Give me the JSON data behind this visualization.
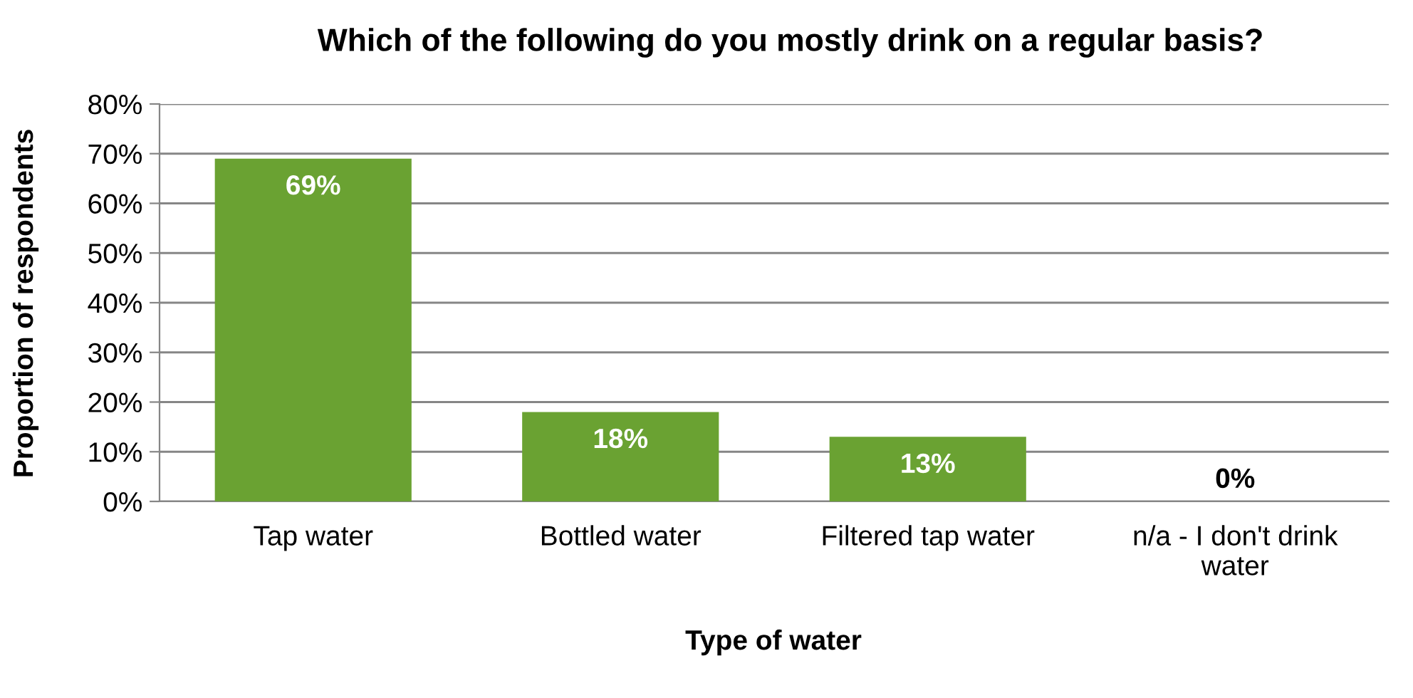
{
  "chart_data": {
    "type": "bar",
    "title": "Which of the following do you mostly drink on a regular basis?",
    "xlabel": "Type of water",
    "ylabel": "Proportion of respondents",
    "categories": [
      "Tap water",
      "Bottled water",
      "Filtered tap water",
      "n/a - I don't drink\nwater"
    ],
    "values": [
      69,
      18,
      13,
      0
    ],
    "color": "#6aa232",
    "value_labels": [
      "69%",
      "18%",
      "13%",
      "0%"
    ],
    "ylim": [
      0,
      80
    ],
    "yticks": [
      {
        "value": 0,
        "label": "0%"
      },
      {
        "value": 10,
        "label": "10%"
      },
      {
        "value": 20,
        "label": "20%"
      },
      {
        "value": 30,
        "label": "30%"
      },
      {
        "value": 40,
        "label": "40%"
      },
      {
        "value": 50,
        "label": "50%"
      },
      {
        "value": 60,
        "label": "60%"
      },
      {
        "value": 70,
        "label": "70%"
      },
      {
        "value": 80,
        "label": "80%"
      }
    ],
    "grid": "y",
    "legend": false
  }
}
